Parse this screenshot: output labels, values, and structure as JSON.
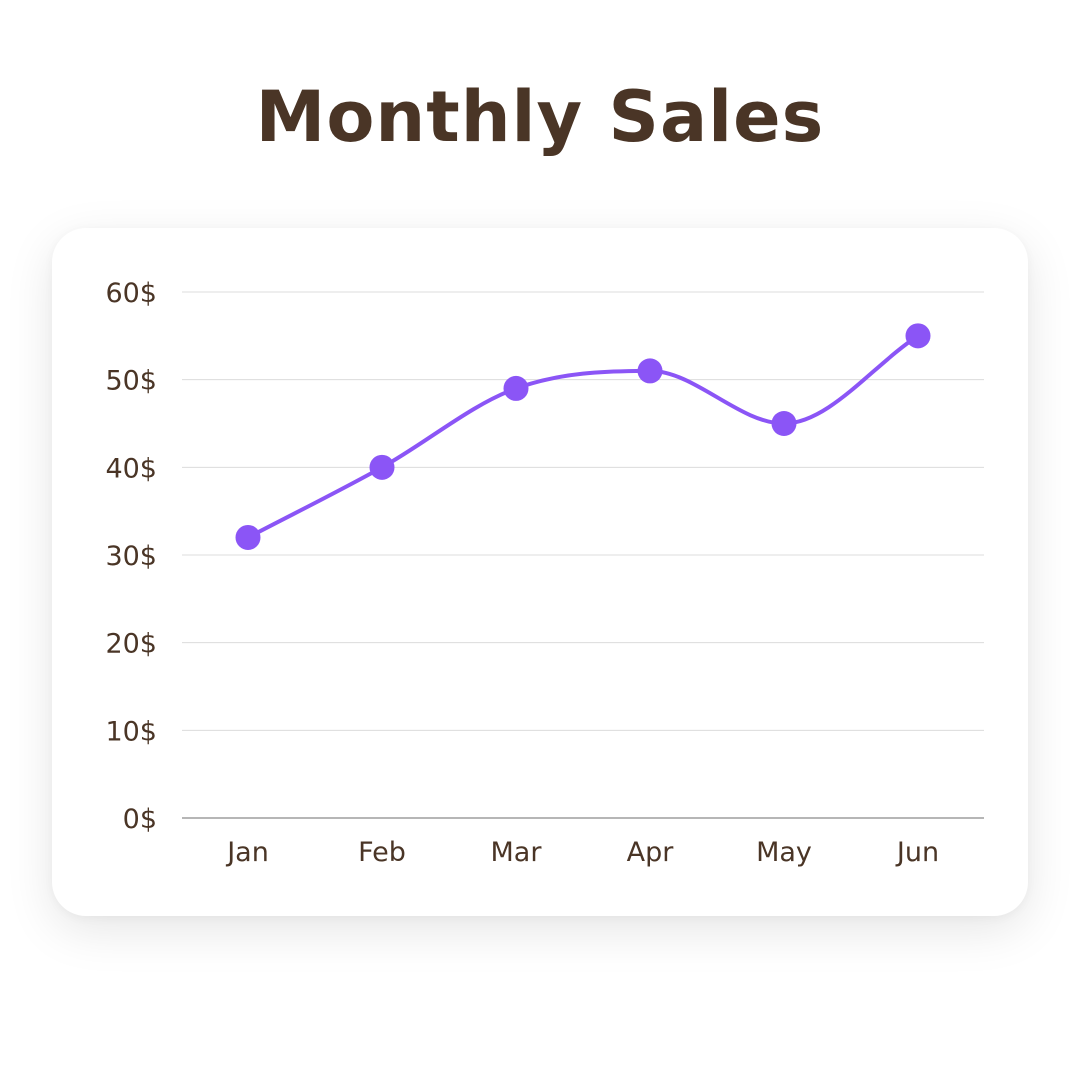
{
  "chart_data": {
    "type": "line",
    "title": "Monthly Sales",
    "xlabel": "",
    "ylabel": "",
    "categories": [
      "Jan",
      "Feb",
      "Mar",
      "Apr",
      "May",
      "Jun"
    ],
    "series": [
      {
        "values": [
          32,
          40,
          49,
          51,
          45,
          55
        ]
      }
    ],
    "ylim": [
      0,
      60
    ],
    "yticks": [
      "0$",
      "10$",
      "20$",
      "30$",
      "40$",
      "50$",
      "60$"
    ],
    "smooth": true,
    "grid": "horizontal",
    "legend": "none",
    "colors": {
      "line": "#8b55f6",
      "marker": "#8b55f6",
      "grid": "#dcdcdc",
      "axis": "#8a8a8a",
      "text": "#4a3526"
    }
  }
}
